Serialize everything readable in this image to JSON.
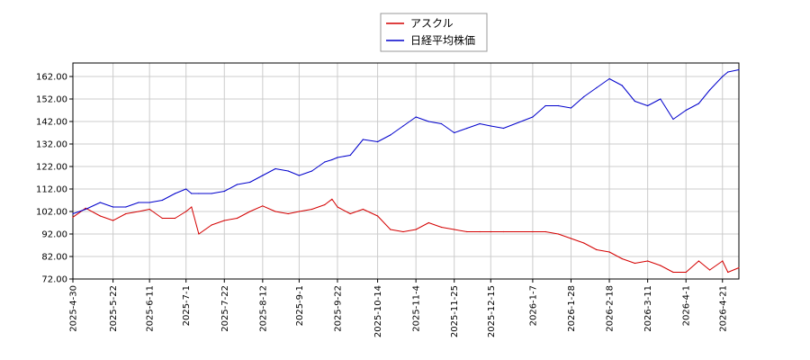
{
  "chart_data": {
    "type": "line",
    "title": "",
    "xlabel": "",
    "ylabel": "",
    "ylim": [
      72,
      168
    ],
    "yticks": [
      "72.00",
      "82.00",
      "92.00",
      "102.00",
      "112.00",
      "122.00",
      "132.00",
      "142.00",
      "152.00",
      "162.00"
    ],
    "x_start": "2025-04-30",
    "x_end": "2026-04-30",
    "xticks": [
      "2025-4-30",
      "2025-5-22",
      "2025-6-11",
      "2025-7-1",
      "2025-7-22",
      "2025-8-12",
      "2025-9-1",
      "2025-9-22",
      "2025-10-14",
      "2025-11-4",
      "2025-11-25",
      "2025-12-15",
      "2026-1-7",
      "2026-1-28",
      "2026-2-18",
      "2026-3-11",
      "2026-4-1",
      "2026-4-21"
    ],
    "grid": true,
    "legend_position": "top-center",
    "series": [
      {
        "name": "アスクル",
        "color": "#d40000",
        "x": [
          "2025-04-30",
          "2025-05-07",
          "2025-05-15",
          "2025-05-22",
          "2025-05-29",
          "2025-06-05",
          "2025-06-11",
          "2025-06-18",
          "2025-06-25",
          "2025-07-01",
          "2025-07-04",
          "2025-07-08",
          "2025-07-15",
          "2025-07-22",
          "2025-07-29",
          "2025-08-05",
          "2025-08-12",
          "2025-08-19",
          "2025-08-26",
          "2025-09-01",
          "2025-09-08",
          "2025-09-15",
          "2025-09-19",
          "2025-09-22",
          "2025-09-29",
          "2025-10-06",
          "2025-10-14",
          "2025-10-21",
          "2025-10-28",
          "2025-11-04",
          "2025-11-11",
          "2025-11-18",
          "2025-11-25",
          "2025-12-02",
          "2025-12-09",
          "2025-12-15",
          "2025-12-22",
          "2026-01-07",
          "2026-01-14",
          "2026-01-21",
          "2026-01-28",
          "2026-02-04",
          "2026-02-11",
          "2026-02-18",
          "2026-02-25",
          "2026-03-04",
          "2026-03-11",
          "2026-03-18",
          "2026-03-25",
          "2026-04-01",
          "2026-04-08",
          "2026-04-14",
          "2026-04-21",
          "2026-04-24",
          "2026-04-30"
        ],
        "values": [
          99.5,
          103.5,
          100,
          98,
          101,
          102,
          103,
          99,
          99,
          102,
          104,
          92,
          96,
          98,
          99,
          102,
          104.5,
          102,
          101,
          102,
          103,
          105,
          107.5,
          104,
          101,
          103,
          100,
          94,
          93,
          94,
          97,
          95,
          94,
          93,
          93,
          93,
          93,
          93,
          93,
          92,
          90,
          88,
          85,
          84,
          81,
          79,
          80,
          78,
          75,
          75,
          80,
          76,
          80,
          75,
          77
        ]
      },
      {
        "name": "日経平均株価",
        "color": "#0000cc",
        "x": [
          "2025-04-30",
          "2025-05-07",
          "2025-05-15",
          "2025-05-22",
          "2025-05-29",
          "2025-06-05",
          "2025-06-11",
          "2025-06-18",
          "2025-06-25",
          "2025-07-01",
          "2025-07-04",
          "2025-07-08",
          "2025-07-15",
          "2025-07-22",
          "2025-07-29",
          "2025-08-05",
          "2025-08-12",
          "2025-08-19",
          "2025-08-26",
          "2025-09-01",
          "2025-09-08",
          "2025-09-15",
          "2025-09-19",
          "2025-09-22",
          "2025-09-29",
          "2025-10-06",
          "2025-10-14",
          "2025-10-21",
          "2025-10-28",
          "2025-11-04",
          "2025-11-11",
          "2025-11-18",
          "2025-11-25",
          "2025-12-02",
          "2025-12-09",
          "2025-12-15",
          "2025-12-22",
          "2026-01-07",
          "2026-01-14",
          "2026-01-21",
          "2026-01-28",
          "2026-02-04",
          "2026-02-11",
          "2026-02-18",
          "2026-02-25",
          "2026-03-04",
          "2026-03-11",
          "2026-03-18",
          "2026-03-25",
          "2026-04-01",
          "2026-04-08",
          "2026-04-14",
          "2026-04-21",
          "2026-04-24",
          "2026-04-30"
        ],
        "values": [
          101,
          103,
          106,
          104,
          104,
          106,
          106,
          107,
          110,
          112,
          110,
          110,
          110,
          111,
          114,
          115,
          118,
          121,
          120,
          118,
          120,
          124,
          125,
          126,
          127,
          134,
          133,
          136,
          140,
          144,
          142,
          141,
          137,
          139,
          141,
          140,
          139,
          144,
          149,
          149,
          148,
          153,
          157,
          161,
          158,
          151,
          149,
          152,
          143,
          147,
          150,
          156,
          162,
          164,
          165
        ]
      }
    ]
  }
}
